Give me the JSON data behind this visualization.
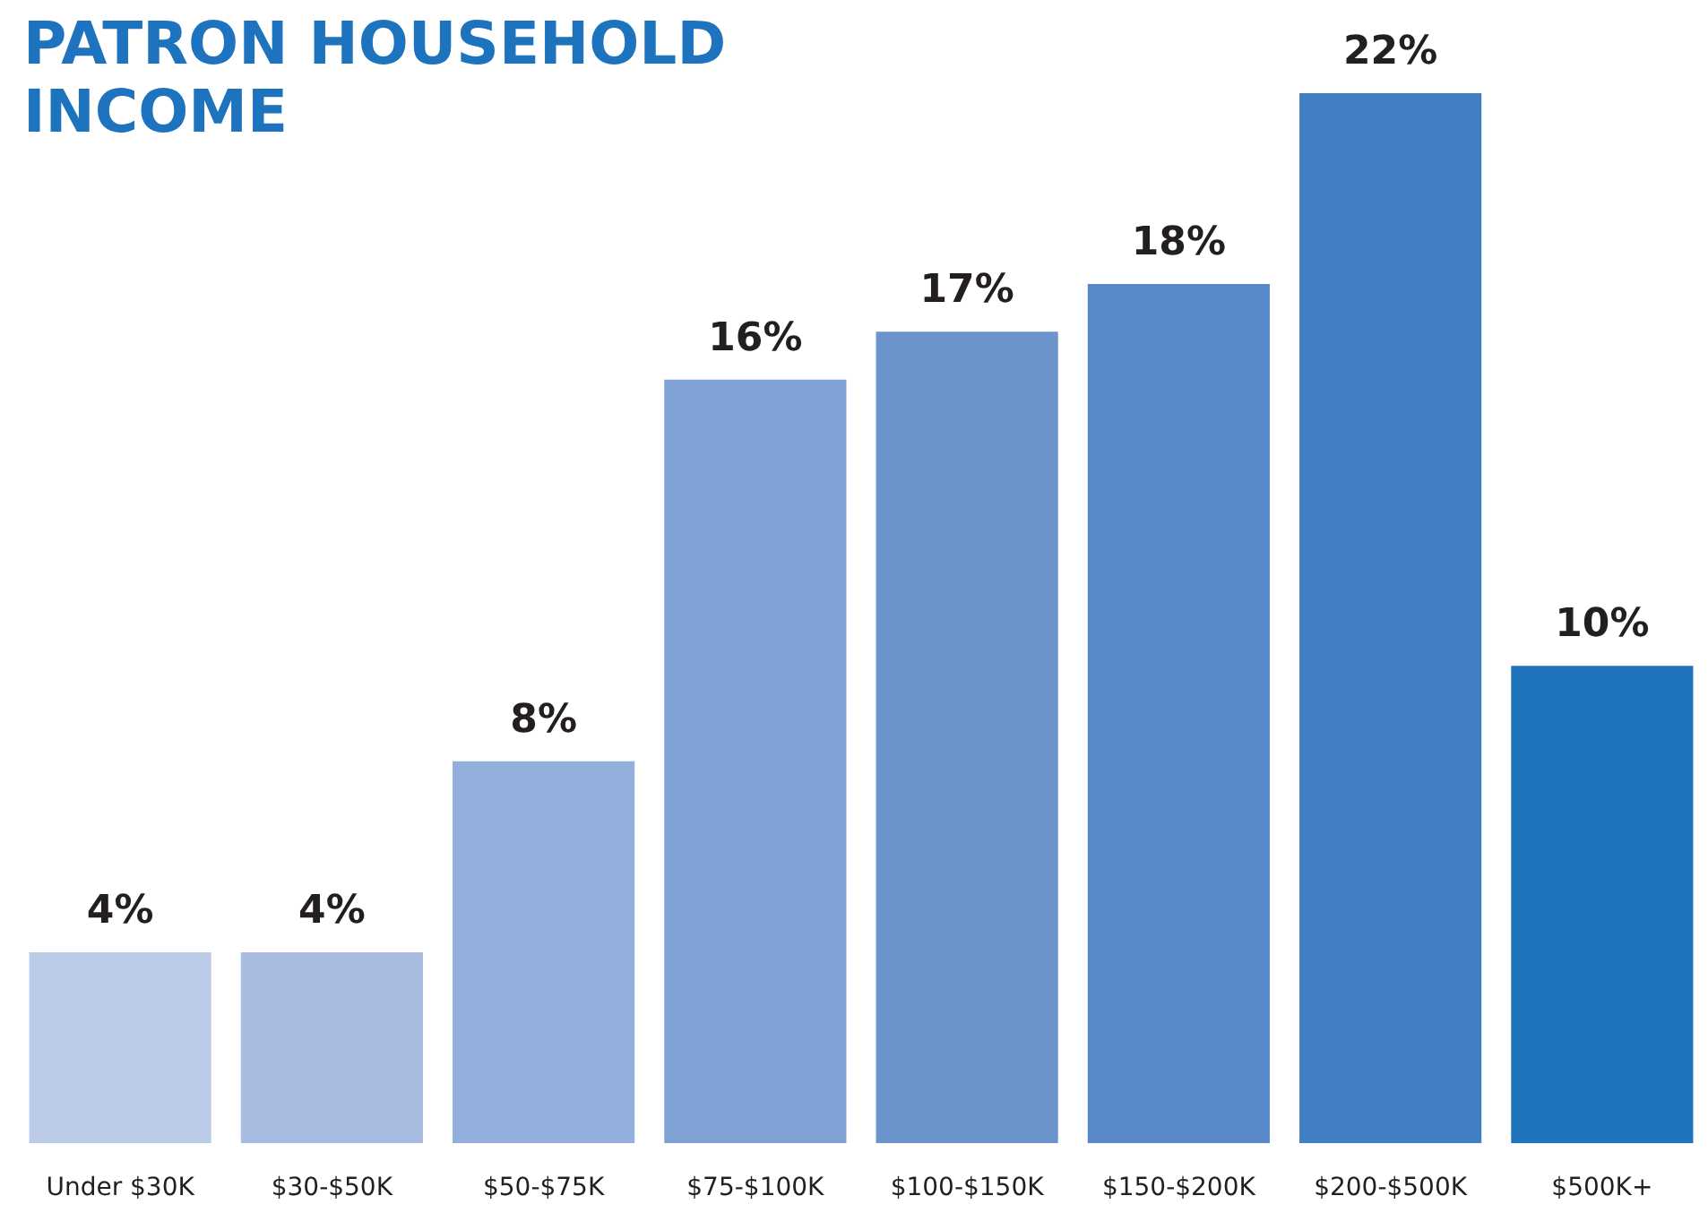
{
  "chart_data": {
    "type": "bar",
    "title": "PATRON HOUSEHOLD INCOME",
    "categories": [
      "Under $30K",
      "$30-$50K",
      "$50-$75K",
      "$75-$100K",
      "$100-$150K",
      "$150-$200K",
      "$200-$500K",
      "$500K+"
    ],
    "values": [
      4,
      4,
      8,
      16,
      17,
      18,
      22,
      10
    ],
    "colors": [
      "#bccbe7",
      "#a8bce1",
      "#93afdb",
      "#7fa1d4",
      "#6b93cc",
      "#5888c8",
      "#407fc2",
      "#2074bc"
    ],
    "value_labels": [
      "4%",
      "4%",
      "8%",
      "16%",
      "17%",
      "18%",
      "22%",
      "10%"
    ]
  }
}
